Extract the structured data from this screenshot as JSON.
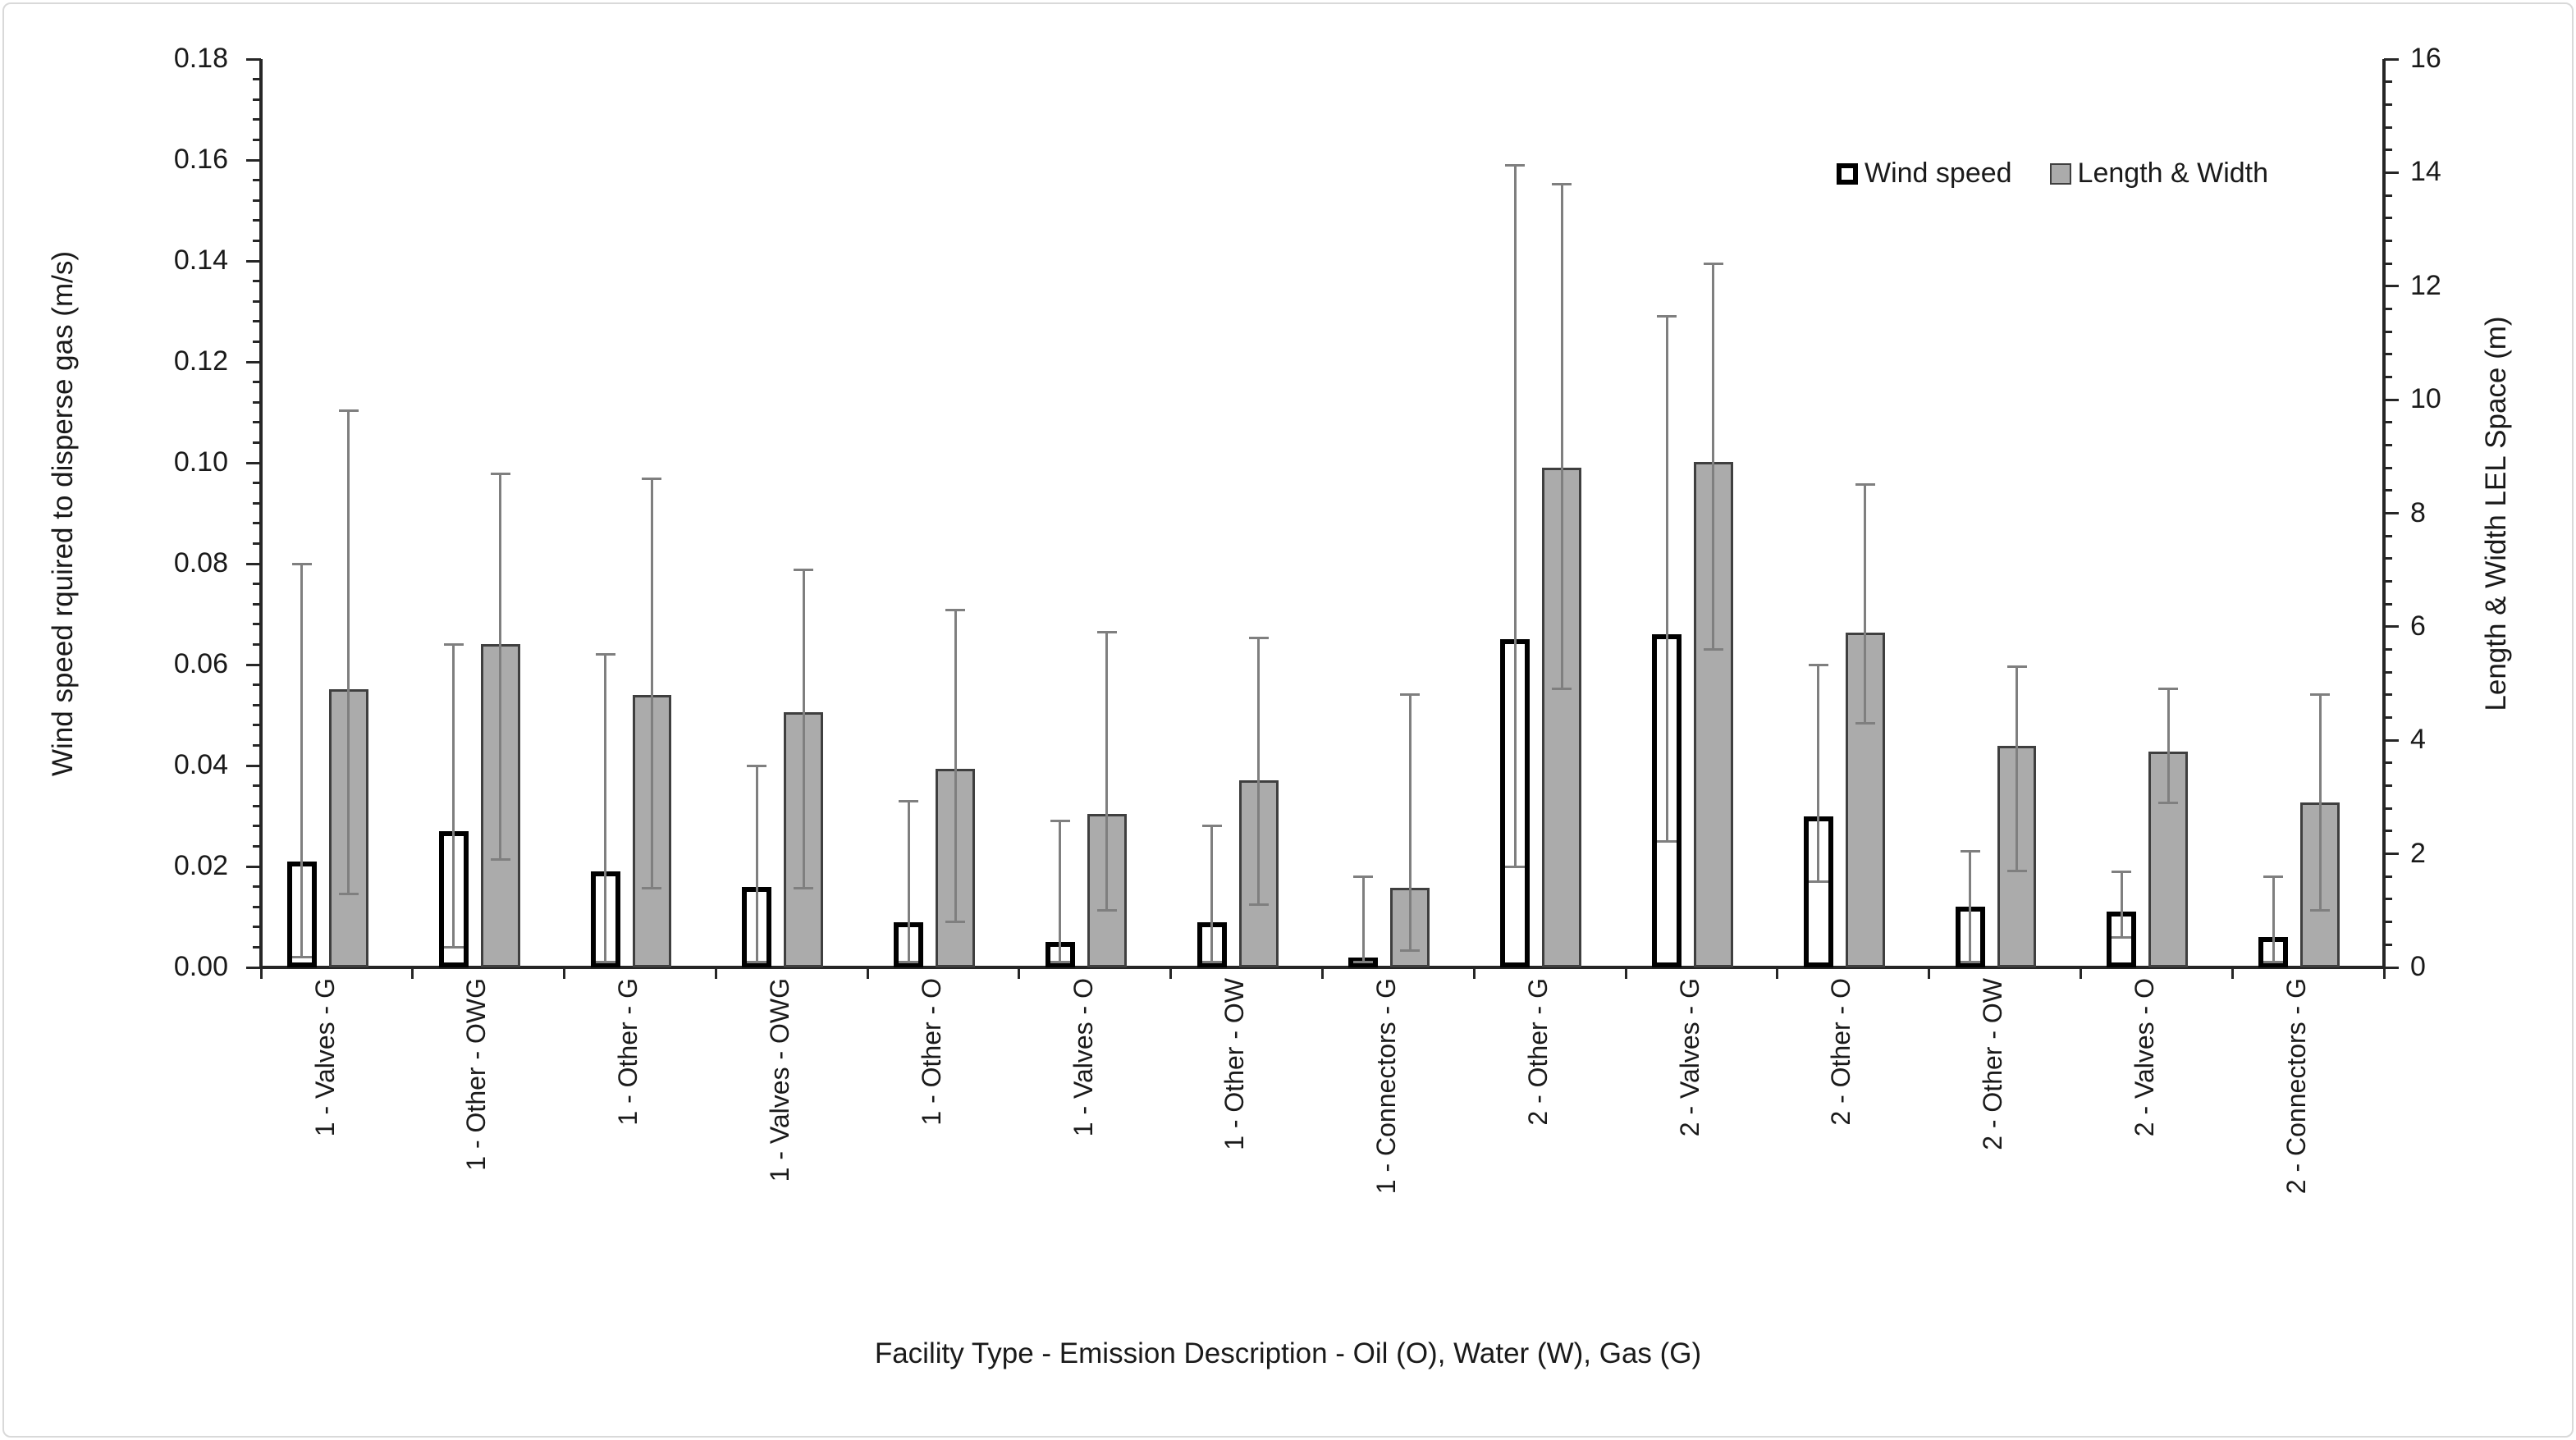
{
  "legend": {
    "wind_label": "Wind speed",
    "lw_label": "Length & Width"
  },
  "axes": {
    "left_title": "Wind speed rquired to disperse gas (m/s)",
    "right_title": "Length & Width LEL Space (m)",
    "x_title": "Facility Type - Emission Description - Oil (O), Water (W), Gas (G)",
    "left_tick_labels": [
      "0.00",
      "0.02",
      "0.04",
      "0.06",
      "0.08",
      "0.10",
      "0.12",
      "0.14",
      "0.16",
      "0.18"
    ],
    "right_tick_labels": [
      "0",
      "2",
      "4",
      "6",
      "8",
      "10",
      "12",
      "14",
      "16"
    ]
  },
  "chart_data": {
    "type": "bar",
    "title": "",
    "xlabel": "Facility Type - Emission Description - Oil (O), Water (W), Gas (G)",
    "ylabel_left": "Wind speed rquired to disperse gas (m/s)",
    "ylabel_right": "Length & Width LEL Space (m)",
    "ylim_left": [
      0,
      0.18
    ],
    "ylim_right": [
      0,
      16
    ],
    "left_major_step": 0.02,
    "left_minor_step": 0.004,
    "right_major_step": 2,
    "right_minor_step": 0.4,
    "grid": "off",
    "legend_position": "top-right",
    "categories": [
      "1 - Valves - G",
      "1 - Other - OWG",
      "1 - Other - G",
      "1 - Valves - OWG",
      "1 - Other - O",
      "1 - Valves - O",
      "1 - Other - OW",
      "1 - Connectors - G",
      "2 - Other - G",
      "2 - Valves - G",
      "2 - Other - O",
      "2 - Other - OW",
      "2 - Valves - O",
      "2 - Connectors - G"
    ],
    "series": [
      {
        "name": "Wind speed",
        "axis": "left",
        "values": [
          0.021,
          0.027,
          0.019,
          0.016,
          0.009,
          0.005,
          0.009,
          0.002,
          0.065,
          0.066,
          0.03,
          0.012,
          0.011,
          0.006
        ],
        "err_low": [
          0.002,
          0.004,
          0.001,
          0.001,
          0.001,
          0.001,
          0.001,
          0.001,
          0.02,
          0.025,
          0.017,
          0.001,
          0.006,
          0.001
        ],
        "err_high": [
          0.08,
          0.064,
          0.062,
          0.04,
          0.033,
          0.029,
          0.028,
          0.018,
          0.159,
          0.129,
          0.06,
          0.023,
          0.019,
          0.018
        ],
        "fill": "#ffffff",
        "border": "#000000"
      },
      {
        "name": "Length & Width",
        "axis": "right",
        "values": [
          4.9,
          5.7,
          4.8,
          4.5,
          3.5,
          2.7,
          3.3,
          1.4,
          8.8,
          8.9,
          5.9,
          3.9,
          3.8,
          2.9
        ],
        "err_low": [
          1.3,
          1.9,
          1.4,
          1.4,
          0.8,
          1.0,
          1.1,
          0.3,
          4.9,
          5.6,
          4.3,
          1.7,
          2.9,
          1.0
        ],
        "err_high": [
          9.8,
          8.7,
          8.6,
          7.0,
          6.3,
          5.9,
          5.8,
          4.8,
          13.8,
          12.4,
          8.5,
          5.3,
          4.9,
          4.8
        ],
        "fill": "#ababab",
        "border": "#3f3f3f"
      }
    ],
    "error_bar_color": "#7f7f7f"
  }
}
